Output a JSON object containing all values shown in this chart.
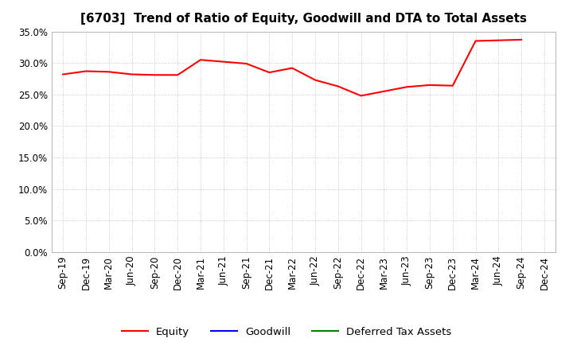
{
  "title": "[6703]  Trend of Ratio of Equity, Goodwill and DTA to Total Assets",
  "x_labels": [
    "Sep-19",
    "Dec-19",
    "Mar-20",
    "Jun-20",
    "Sep-20",
    "Dec-20",
    "Mar-21",
    "Jun-21",
    "Sep-21",
    "Dec-21",
    "Mar-22",
    "Jun-22",
    "Sep-22",
    "Dec-22",
    "Mar-23",
    "Jun-23",
    "Sep-23",
    "Dec-23",
    "Mar-24",
    "Jun-24",
    "Sep-24",
    "Dec-24"
  ],
  "equity": [
    28.2,
    28.7,
    28.6,
    28.2,
    28.1,
    28.1,
    30.5,
    30.2,
    29.9,
    28.5,
    29.2,
    27.3,
    26.3,
    24.8,
    25.5,
    26.2,
    26.5,
    26.4,
    33.5,
    33.6,
    33.7,
    null
  ],
  "goodwill": [
    null,
    null,
    null,
    null,
    null,
    null,
    null,
    null,
    null,
    null,
    null,
    null,
    null,
    null,
    null,
    null,
    null,
    null,
    null,
    null,
    null,
    null
  ],
  "dta": [
    null,
    null,
    null,
    null,
    null,
    null,
    null,
    null,
    null,
    null,
    null,
    null,
    null,
    null,
    null,
    null,
    null,
    null,
    null,
    null,
    null,
    null
  ],
  "equity_color": "#FF0000",
  "goodwill_color": "#0000FF",
  "dta_color": "#008000",
  "ylim": [
    0.0,
    0.35
  ],
  "yticks": [
    0.0,
    0.05,
    0.1,
    0.15,
    0.2,
    0.25,
    0.3,
    0.35
  ],
  "background_color": "#FFFFFF",
  "grid_color": "#BBBBBB",
  "legend_entries": [
    "Equity",
    "Goodwill",
    "Deferred Tax Assets"
  ],
  "title_fontsize": 11,
  "axis_fontsize": 8.5
}
